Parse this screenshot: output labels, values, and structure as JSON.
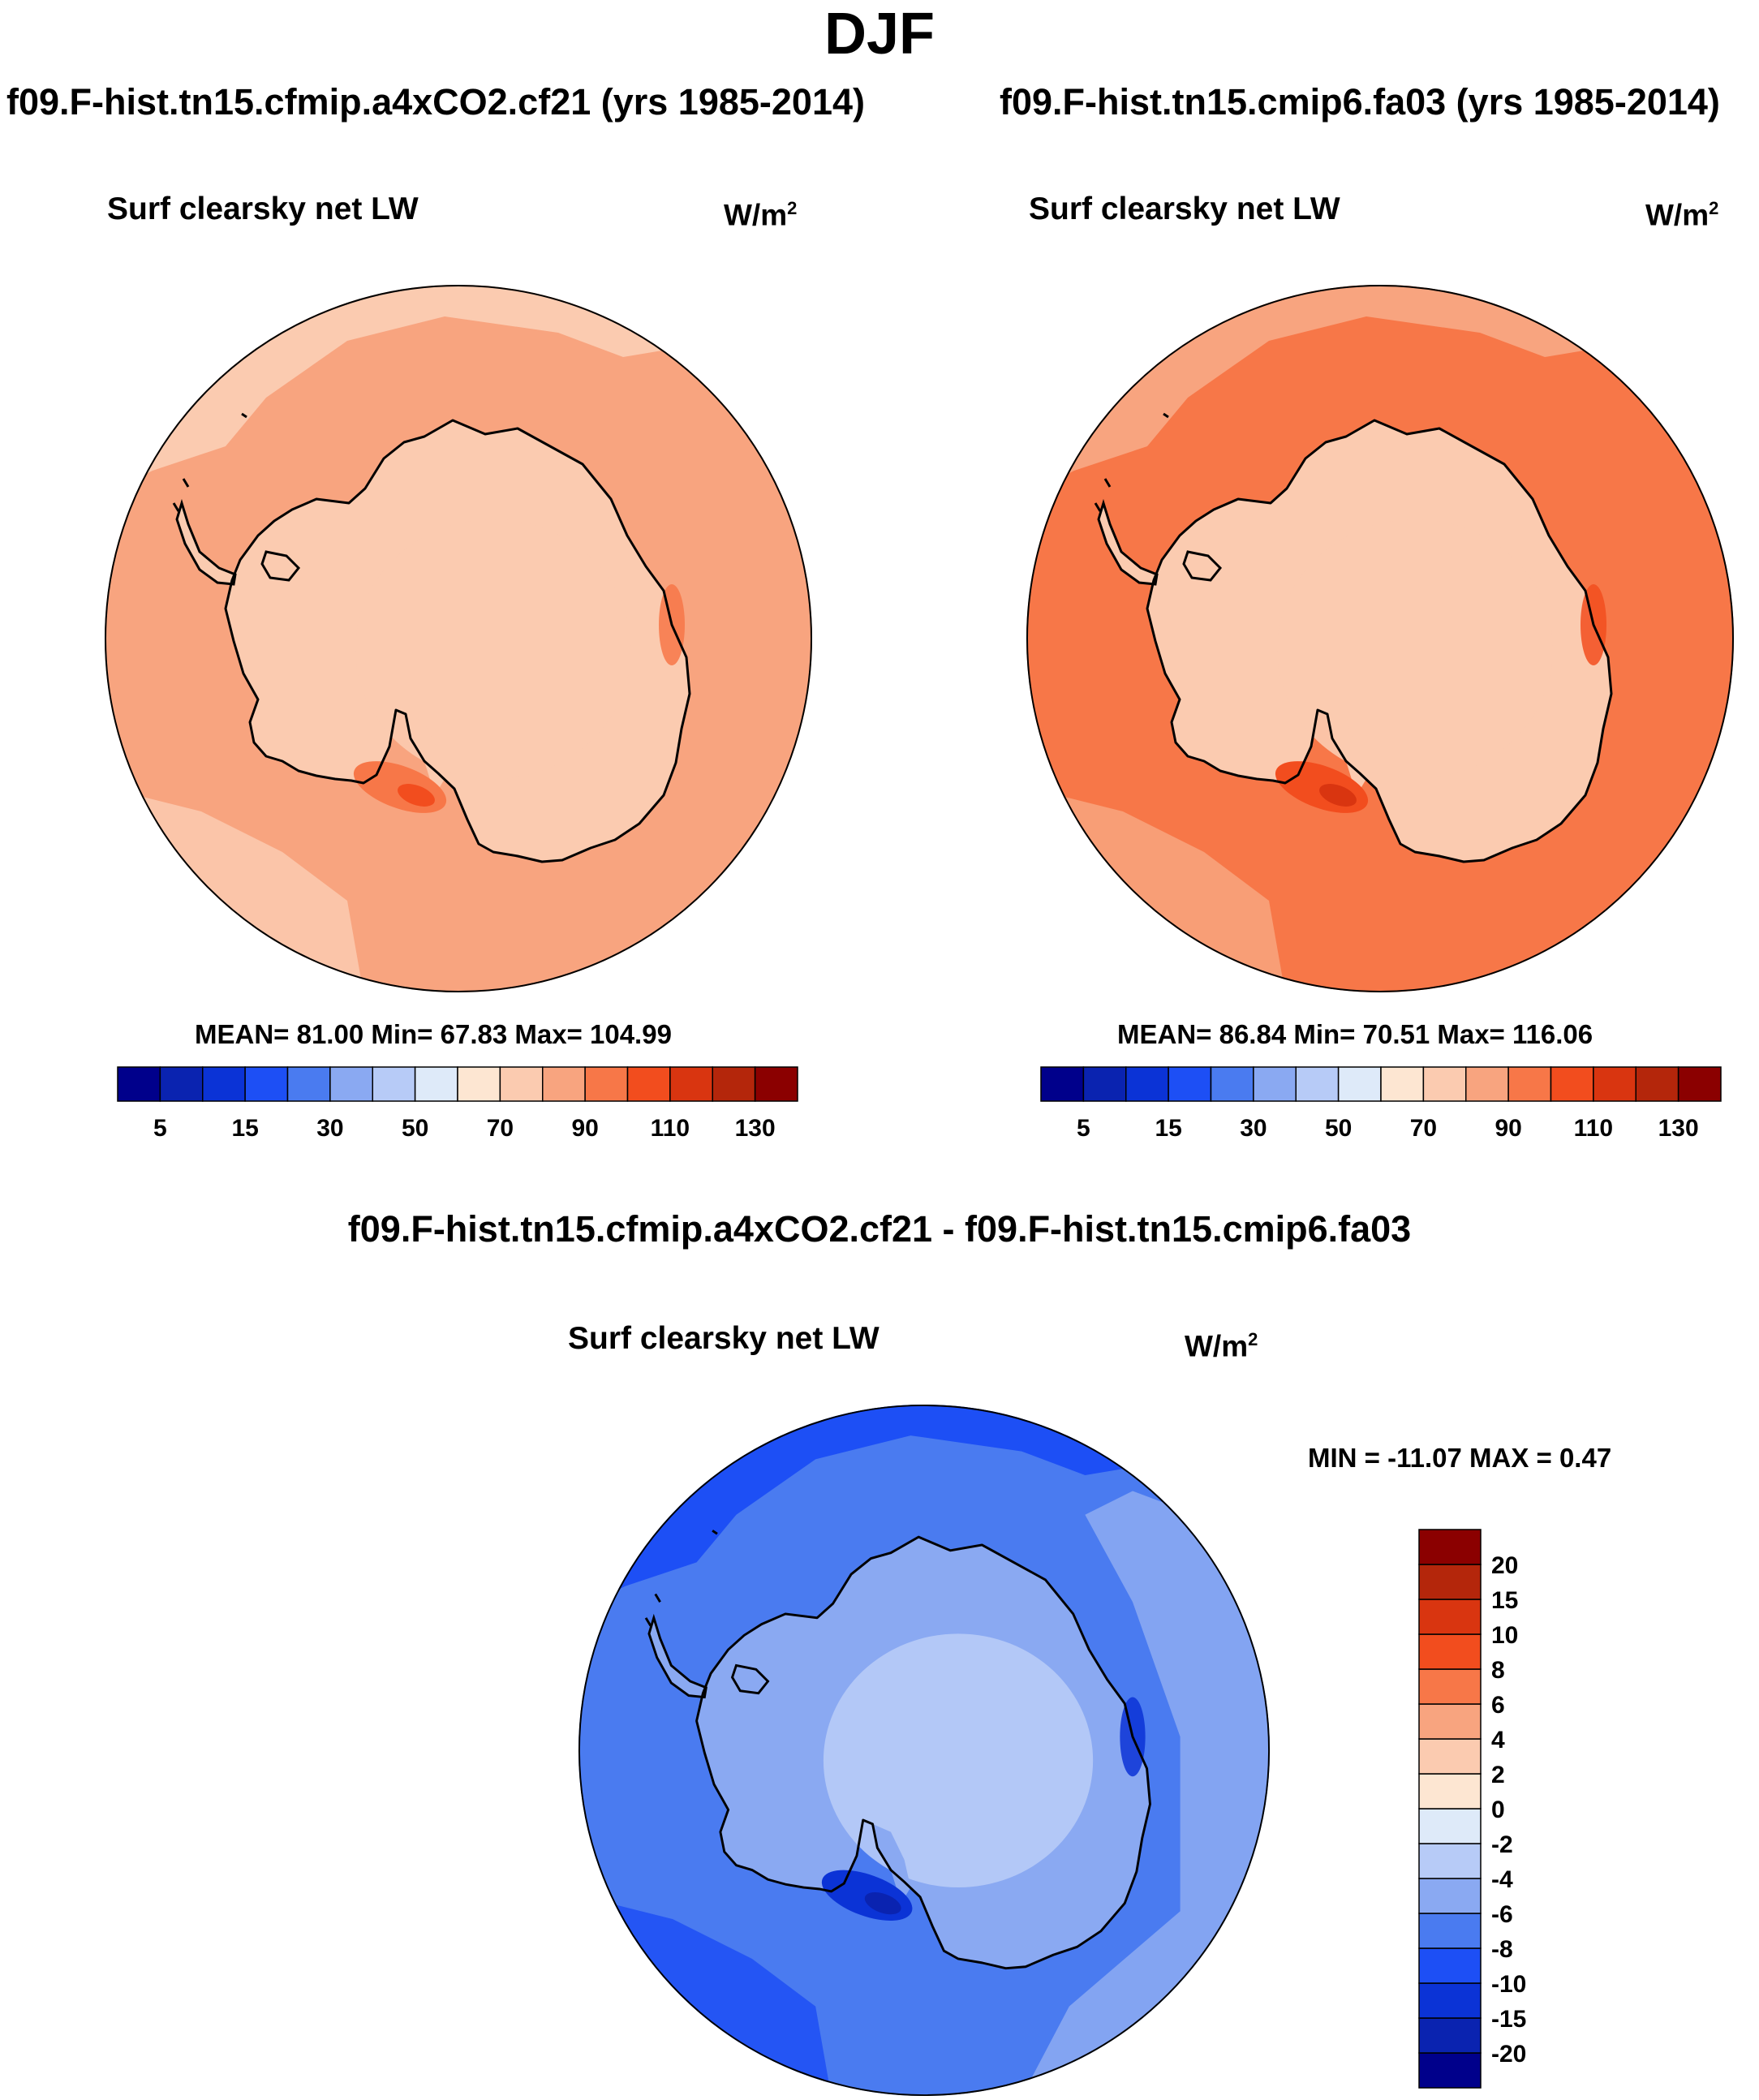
{
  "figure": {
    "season": "DJF",
    "panels": [
      {
        "case_title": "f09.F-hist.tn15.cfmip.a4xCO2.cf21 (yrs 1985-2014)",
        "variable": "Surf clearsky net LW",
        "units_base": "W/m",
        "units_exp": "2",
        "stats": "MEAN=  81.00  Min=  67.83  Max= 104.99"
      },
      {
        "case_title": "f09.F-hist.tn15.cmip6.fa03 (yrs 1985-2014)",
        "variable": "Surf clearsky net LW",
        "units_base": "W/m",
        "units_exp": "2",
        "stats": "MEAN=  86.84  Min=  70.51  Max= 116.06"
      }
    ],
    "difference": {
      "title": "f09.F-hist.tn15.cfmip.a4xCO2.cf21 - f09.F-hist.tn15.cmip6.fa03",
      "variable": "Surf clearsky net LW",
      "units_base": "W/m",
      "units_exp": "2",
      "stats": "MIN = -11.07 MAX =   0.47"
    }
  },
  "colorbars": {
    "absolute": {
      "colors": [
        "#00008b",
        "#0a23b0",
        "#0b33d6",
        "#1d4ff5",
        "#4a7bf0",
        "#8aa9f2",
        "#b7cbf7",
        "#deeaf9",
        "#fde6d2",
        "#fbcbb0",
        "#f8a47f",
        "#f77748",
        "#f24d1e",
        "#d93510",
        "#b4260b",
        "#8b0000"
      ],
      "tick_labels": [
        "5",
        "15",
        "30",
        "50",
        "70",
        "90",
        "110",
        "130"
      ]
    },
    "difference": {
      "colors": [
        "#00008b",
        "#0a23b0",
        "#0b33d6",
        "#1d4ff5",
        "#4a7bf0",
        "#8aa9f2",
        "#b7cbf7",
        "#deeaf9",
        "#fde6d2",
        "#fbcbb0",
        "#f8a47f",
        "#f77748",
        "#f24d1e",
        "#d93510",
        "#b4260b",
        "#8b0000"
      ],
      "tick_labels": [
        "-20",
        "-15",
        "-10",
        "-8",
        "-6",
        "-4",
        "-2",
        "0",
        "2",
        "4",
        "6",
        "8",
        "10",
        "15",
        "20"
      ]
    }
  },
  "maps": {
    "left": {
      "ocean": "#f8a47f",
      "bands": [
        "#fbcbb0"
      ],
      "land": "#fbcbb0",
      "plateau": "#fbcbb0",
      "highlight": "#f77748",
      "highlight_core": "#f24d1e",
      "coast": "#000000"
    },
    "right": {
      "ocean": "#f77748",
      "bands": [
        "#f8a47f"
      ],
      "land": "#fbcbb0",
      "plateau": "#fbcbb0",
      "highlight": "#f24d1e",
      "highlight_core": "#d93510",
      "coast": "#000000"
    },
    "diff": {
      "ocean": "#4a7bf0",
      "bands": [
        "#1d4ff5",
        "#8aa9f2"
      ],
      "land": "#8aa9f2",
      "plateau": "#b7cbf7",
      "highlight": "#0b33d6",
      "highlight_core": "#0a23b0",
      "coast": "#000000"
    }
  }
}
